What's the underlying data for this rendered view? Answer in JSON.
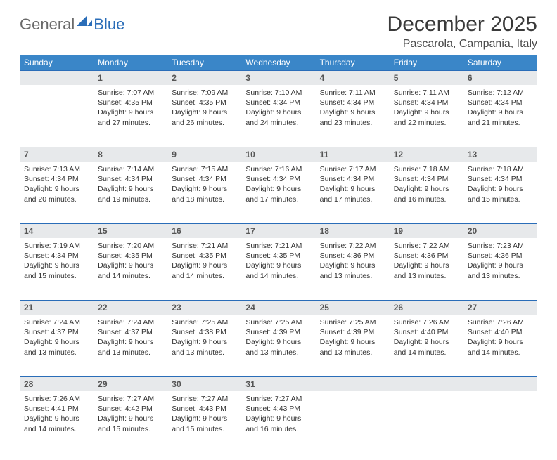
{
  "brand": {
    "name1": "General",
    "name2": "Blue"
  },
  "title": "December 2025",
  "location": "Pascarola, Campania, Italy",
  "colors": {
    "header_bg": "#3a86c8",
    "header_text": "#ffffff",
    "daynum_bg": "#e7e9eb",
    "rule": "#2a6db8",
    "text": "#333333",
    "logo_gray": "#6a6a6a",
    "logo_blue": "#2a6db8"
  },
  "day_names": [
    "Sunday",
    "Monday",
    "Tuesday",
    "Wednesday",
    "Thursday",
    "Friday",
    "Saturday"
  ],
  "first_weekday_index": 1,
  "days": [
    {
      "n": 1,
      "sr": "7:07 AM",
      "ss": "4:35 PM",
      "dl": "9 hours and 27 minutes."
    },
    {
      "n": 2,
      "sr": "7:09 AM",
      "ss": "4:35 PM",
      "dl": "9 hours and 26 minutes."
    },
    {
      "n": 3,
      "sr": "7:10 AM",
      "ss": "4:34 PM",
      "dl": "9 hours and 24 minutes."
    },
    {
      "n": 4,
      "sr": "7:11 AM",
      "ss": "4:34 PM",
      "dl": "9 hours and 23 minutes."
    },
    {
      "n": 5,
      "sr": "7:11 AM",
      "ss": "4:34 PM",
      "dl": "9 hours and 22 minutes."
    },
    {
      "n": 6,
      "sr": "7:12 AM",
      "ss": "4:34 PM",
      "dl": "9 hours and 21 minutes."
    },
    {
      "n": 7,
      "sr": "7:13 AM",
      "ss": "4:34 PM",
      "dl": "9 hours and 20 minutes."
    },
    {
      "n": 8,
      "sr": "7:14 AM",
      "ss": "4:34 PM",
      "dl": "9 hours and 19 minutes."
    },
    {
      "n": 9,
      "sr": "7:15 AM",
      "ss": "4:34 PM",
      "dl": "9 hours and 18 minutes."
    },
    {
      "n": 10,
      "sr": "7:16 AM",
      "ss": "4:34 PM",
      "dl": "9 hours and 17 minutes."
    },
    {
      "n": 11,
      "sr": "7:17 AM",
      "ss": "4:34 PM",
      "dl": "9 hours and 17 minutes."
    },
    {
      "n": 12,
      "sr": "7:18 AM",
      "ss": "4:34 PM",
      "dl": "9 hours and 16 minutes."
    },
    {
      "n": 13,
      "sr": "7:18 AM",
      "ss": "4:34 PM",
      "dl": "9 hours and 15 minutes."
    },
    {
      "n": 14,
      "sr": "7:19 AM",
      "ss": "4:34 PM",
      "dl": "9 hours and 15 minutes."
    },
    {
      "n": 15,
      "sr": "7:20 AM",
      "ss": "4:35 PM",
      "dl": "9 hours and 14 minutes."
    },
    {
      "n": 16,
      "sr": "7:21 AM",
      "ss": "4:35 PM",
      "dl": "9 hours and 14 minutes."
    },
    {
      "n": 17,
      "sr": "7:21 AM",
      "ss": "4:35 PM",
      "dl": "9 hours and 14 minutes."
    },
    {
      "n": 18,
      "sr": "7:22 AM",
      "ss": "4:36 PM",
      "dl": "9 hours and 13 minutes."
    },
    {
      "n": 19,
      "sr": "7:22 AM",
      "ss": "4:36 PM",
      "dl": "9 hours and 13 minutes."
    },
    {
      "n": 20,
      "sr": "7:23 AM",
      "ss": "4:36 PM",
      "dl": "9 hours and 13 minutes."
    },
    {
      "n": 21,
      "sr": "7:24 AM",
      "ss": "4:37 PM",
      "dl": "9 hours and 13 minutes."
    },
    {
      "n": 22,
      "sr": "7:24 AM",
      "ss": "4:37 PM",
      "dl": "9 hours and 13 minutes."
    },
    {
      "n": 23,
      "sr": "7:25 AM",
      "ss": "4:38 PM",
      "dl": "9 hours and 13 minutes."
    },
    {
      "n": 24,
      "sr": "7:25 AM",
      "ss": "4:39 PM",
      "dl": "9 hours and 13 minutes."
    },
    {
      "n": 25,
      "sr": "7:25 AM",
      "ss": "4:39 PM",
      "dl": "9 hours and 13 minutes."
    },
    {
      "n": 26,
      "sr": "7:26 AM",
      "ss": "4:40 PM",
      "dl": "9 hours and 14 minutes."
    },
    {
      "n": 27,
      "sr": "7:26 AM",
      "ss": "4:40 PM",
      "dl": "9 hours and 14 minutes."
    },
    {
      "n": 28,
      "sr": "7:26 AM",
      "ss": "4:41 PM",
      "dl": "9 hours and 14 minutes."
    },
    {
      "n": 29,
      "sr": "7:27 AM",
      "ss": "4:42 PM",
      "dl": "9 hours and 15 minutes."
    },
    {
      "n": 30,
      "sr": "7:27 AM",
      "ss": "4:43 PM",
      "dl": "9 hours and 15 minutes."
    },
    {
      "n": 31,
      "sr": "7:27 AM",
      "ss": "4:43 PM",
      "dl": "9 hours and 16 minutes."
    }
  ],
  "labels": {
    "sunrise": "Sunrise:",
    "sunset": "Sunset:",
    "daylight": "Daylight:"
  }
}
